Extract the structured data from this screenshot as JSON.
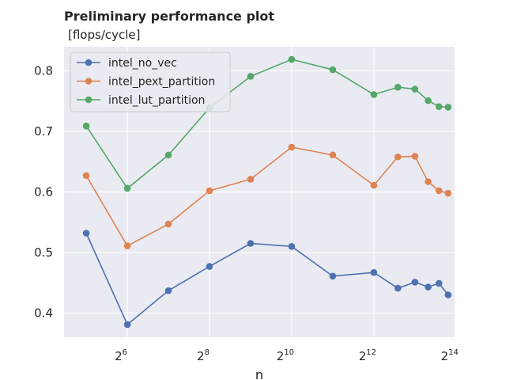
{
  "chart_data": {
    "type": "line",
    "title": "Preliminary performance plot",
    "ylabel": "[flops/cycle]",
    "xlabel": "n",
    "x_scale": "log2",
    "x": [
      32,
      64,
      128,
      256,
      512,
      1024,
      2048,
      4096,
      6144,
      8192,
      10240,
      12288,
      14336
    ],
    "xlim": [
      22,
      16000
    ],
    "ylim": [
      0.36,
      0.84
    ],
    "x_ticks": [
      {
        "base": "2",
        "exp": "6",
        "value": 64
      },
      {
        "base": "2",
        "exp": "8",
        "value": 256
      },
      {
        "base": "2",
        "exp": "10",
        "value": 1024
      },
      {
        "base": "2",
        "exp": "12",
        "value": 4096
      },
      {
        "base": "2",
        "exp": "14",
        "value": 16384
      }
    ],
    "y_ticks": [
      "0.4",
      "0.5",
      "0.6",
      "0.7",
      "0.8"
    ],
    "grid": true,
    "legend_position": "top-left",
    "series": [
      {
        "name": "intel_no_vec",
        "color": "#4c72b0",
        "values": [
          0.532,
          0.381,
          0.437,
          0.477,
          0.515,
          0.51,
          0.461,
          0.467,
          0.441,
          0.451,
          0.443,
          0.449,
          0.43
        ]
      },
      {
        "name": "intel_pext_partition",
        "color": "#dd8452",
        "values": [
          0.627,
          0.511,
          0.547,
          0.602,
          0.621,
          0.674,
          0.661,
          0.611,
          0.658,
          0.659,
          0.617,
          0.602,
          0.598
        ]
      },
      {
        "name": "intel_lut_partition",
        "color": "#55a868",
        "values": [
          0.709,
          0.606,
          0.661,
          0.739,
          0.791,
          0.819,
          0.802,
          0.761,
          0.773,
          0.77,
          0.751,
          0.741,
          0.74
        ]
      }
    ]
  }
}
